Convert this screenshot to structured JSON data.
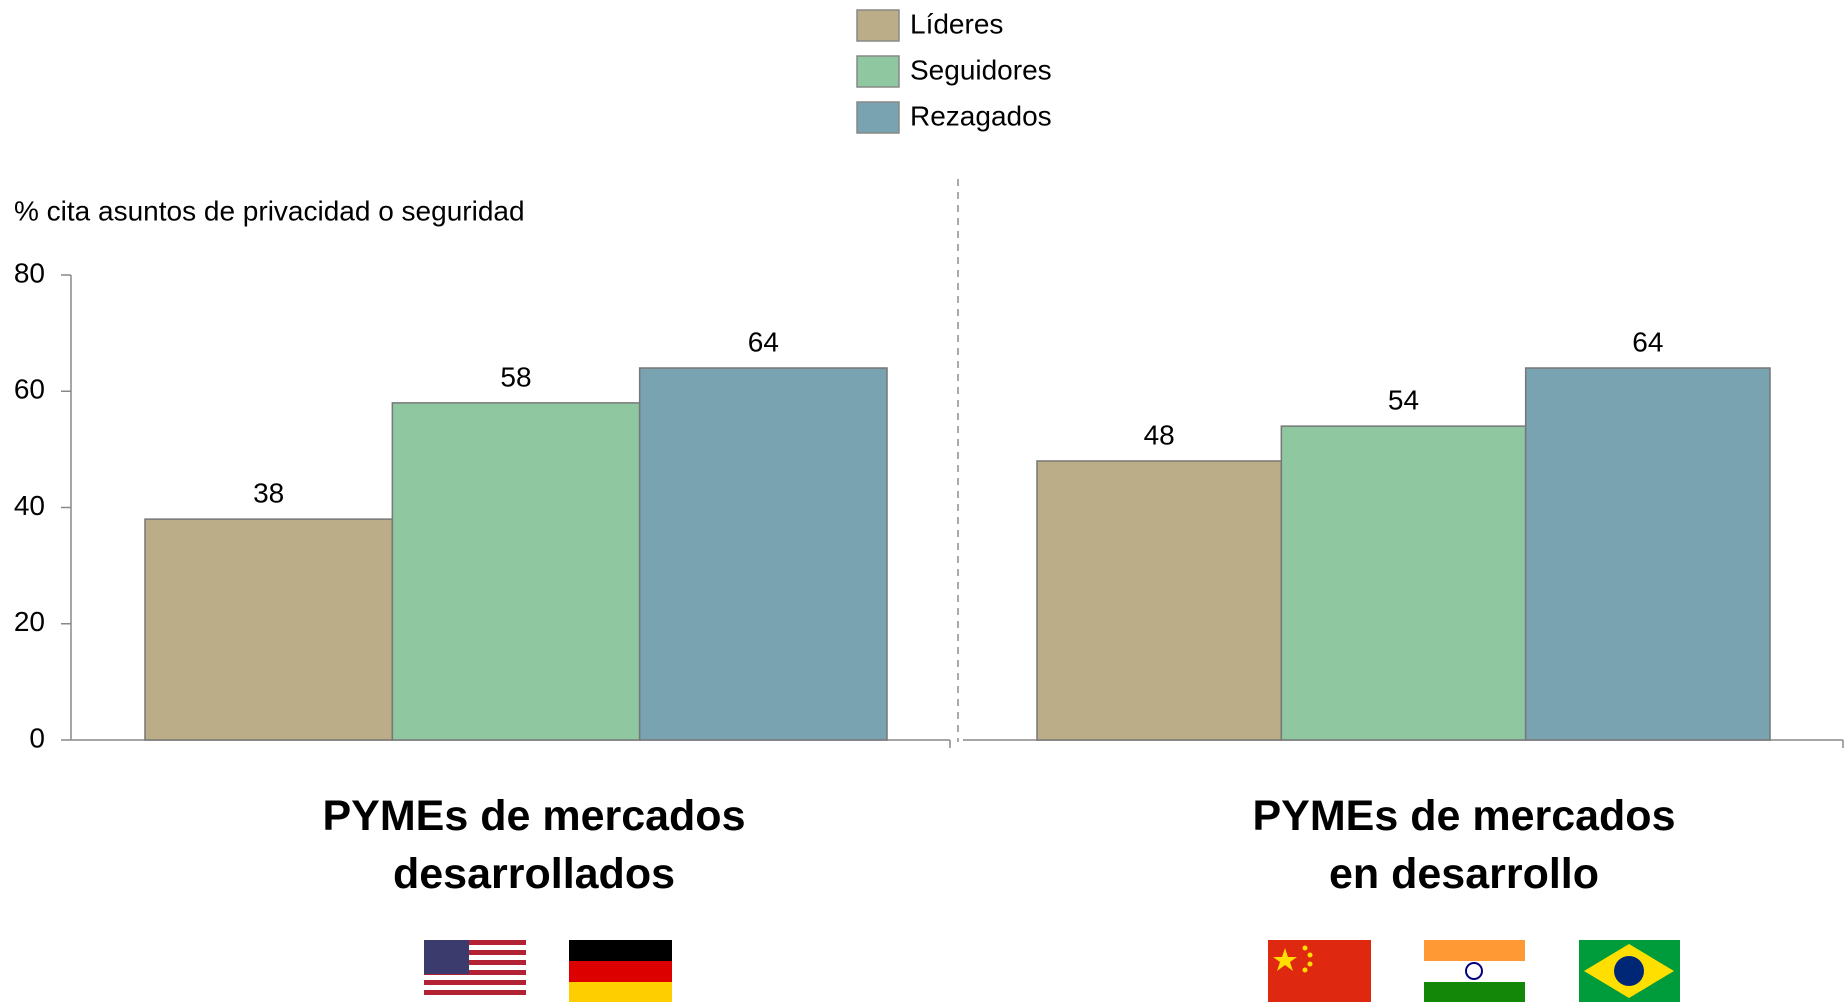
{
  "chart_data": {
    "type": "bar",
    "y_label": "% cita asuntos de privacidad o seguridad",
    "categories": [
      "PYMEs de mercados\ndesarrollados",
      "PYMEs de mercados\nen desarrollo"
    ],
    "series": [
      {
        "name": "Líderes",
        "color": "#bbad87",
        "values": [
          38,
          48
        ]
      },
      {
        "name": "Seguidores",
        "color": "#8fc7a0",
        "values": [
          58,
          54
        ]
      },
      {
        "name": "Rezagados",
        "color": "#7aa3b2",
        "values": [
          64,
          64
        ]
      }
    ],
    "ylim": [
      0,
      80
    ],
    "yticks": [
      0,
      20,
      40,
      60,
      80
    ]
  }
}
